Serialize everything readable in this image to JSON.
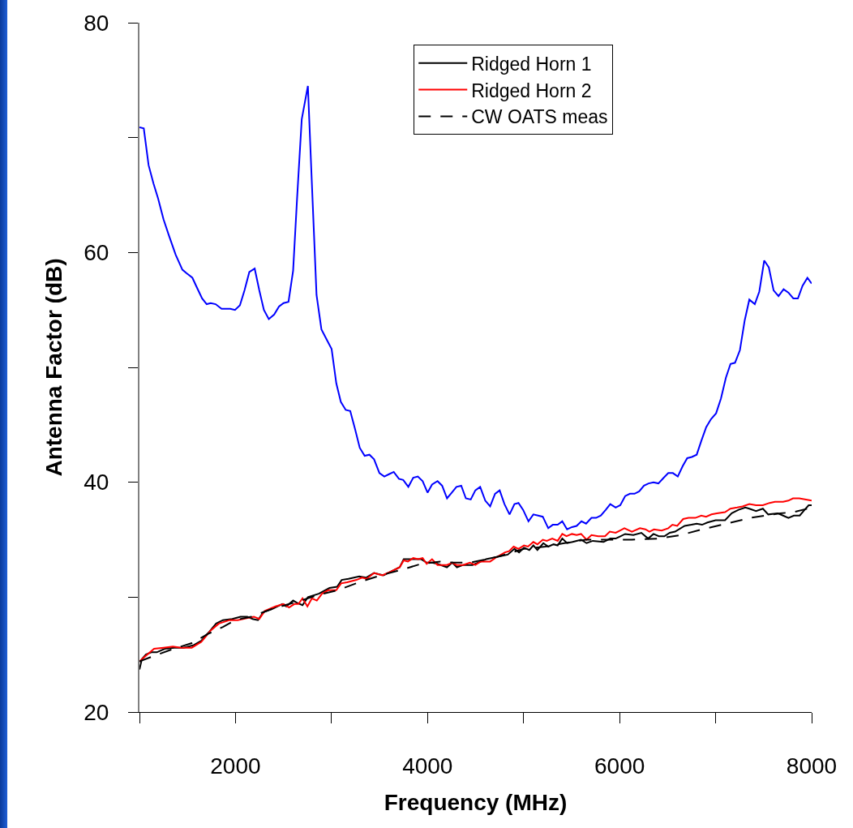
{
  "chart_data": {
    "type": "line",
    "xlabel": "Frequency (MHz)",
    "ylabel": "Antenna Factor (dB)",
    "xlim": [
      1000,
      8000
    ],
    "xticks": [
      {
        "value": 1000,
        "label": null
      },
      2000,
      {
        "value": 3000,
        "label": null
      },
      4000,
      {
        "value": 5000,
        "label": null
      },
      6000,
      {
        "value": 7000,
        "label": null
      },
      8000
    ],
    "ylim": [
      20,
      80
    ],
    "yticks": [
      20,
      {
        "value": 30,
        "label": null
      },
      40,
      {
        "value": 50,
        "label": null
      },
      60,
      {
        "value": 70,
        "label": null
      },
      80
    ],
    "grid": false,
    "legend": "top right",
    "series": [
      {
        "name": "Ridged Horn 1",
        "color": "#000000",
        "line_style": "solid",
        "x": [
          1000,
          1025,
          1067,
          1124,
          1180,
          1264,
          1363,
          1461,
          1559,
          1644,
          1728,
          1799,
          1869,
          1967,
          2052,
          2122,
          2178,
          2234,
          2290,
          2389,
          2487,
          2529,
          2600,
          2642,
          2698,
          2754,
          2867,
          2979,
          3058,
          3106,
          3176,
          3289,
          3359,
          3443,
          3541,
          3710,
          3752,
          3851,
          3935,
          3991,
          4047,
          4104,
          4202,
          4258,
          4306,
          4371,
          4469,
          4610,
          4722,
          4835,
          4905,
          4953,
          5004,
          5060,
          5102,
          5144,
          5206,
          5257,
          5313,
          5355,
          5403,
          5453,
          5510,
          5552,
          5599,
          5656,
          5721,
          5833,
          5903,
          5959,
          6058,
          6143,
          6227,
          6297,
          6353,
          6409,
          6466,
          6522,
          6578,
          6677,
          6747,
          6803,
          6859,
          6915,
          7000,
          7098,
          7168,
          7239,
          7309,
          7351,
          7421,
          7492,
          7548,
          7646,
          7702,
          7758,
          7815,
          7876,
          7927,
          7969,
          8000
        ],
        "values": [
          23.7,
          24.6,
          25.0,
          25.2,
          25.2,
          25.5,
          25.6,
          25.6,
          25.8,
          26.2,
          27.0,
          27.7,
          28.0,
          28.1,
          28.3,
          28.3,
          28.1,
          28.0,
          28.7,
          29.0,
          29.4,
          29.2,
          29.7,
          29.5,
          29.3,
          30.0,
          30.3,
          30.8,
          30.9,
          31.5,
          31.6,
          31.8,
          31.7,
          32.1,
          31.9,
          32.6,
          33.3,
          33.3,
          33.3,
          33.0,
          33.0,
          32.9,
          32.6,
          33.0,
          32.6,
          32.8,
          32.8,
          33.3,
          33.5,
          33.7,
          34.2,
          33.9,
          34.3,
          34.1,
          34.5,
          34.1,
          34.7,
          34.4,
          34.6,
          34.5,
          35.1,
          34.7,
          34.8,
          34.9,
          35.0,
          34.7,
          34.9,
          34.8,
          35.1,
          35.1,
          35.5,
          35.4,
          35.6,
          35.1,
          35.5,
          35.3,
          35.3,
          35.6,
          35.7,
          36.2,
          36.3,
          36.4,
          36.3,
          36.5,
          36.7,
          36.7,
          37.3,
          37.6,
          37.8,
          37.7,
          37.5,
          37.7,
          37.2,
          37.3,
          37.1,
          36.9,
          37.1,
          37.1,
          37.6,
          38.0,
          38.0
        ]
      },
      {
        "name": "Ridged Horn 2",
        "color": "#ff0000",
        "line_style": "solid",
        "x": [
          1000,
          1053,
          1152,
          1250,
          1348,
          1433,
          1545,
          1644,
          1742,
          1827,
          1939,
          2023,
          2136,
          2192,
          2248,
          2305,
          2417,
          2501,
          2558,
          2613,
          2656,
          2698,
          2749,
          2796,
          2847,
          2901,
          2965,
          3049,
          3100,
          3162,
          3260,
          3317,
          3367,
          3443,
          3528,
          3612,
          3710,
          3752,
          3795,
          3851,
          3901,
          3949,
          3991,
          4047,
          4104,
          4202,
          4258,
          4301,
          4371,
          4441,
          4498,
          4553,
          4652,
          4722,
          4806,
          4849,
          4897,
          4947,
          5004,
          5046,
          5102,
          5144,
          5200,
          5242,
          5299,
          5355,
          5403,
          5447,
          5504,
          5552,
          5599,
          5656,
          5707,
          5777,
          5848,
          5898,
          5959,
          6050,
          6128,
          6212,
          6269,
          6311,
          6358,
          6438,
          6507,
          6550,
          6600,
          6662,
          6718,
          6789,
          6851,
          6901,
          6957,
          7013,
          7098,
          7154,
          7224,
          7280,
          7351,
          7421,
          7492,
          7562,
          7618,
          7702,
          7758,
          7806,
          7871,
          7941,
          8000
        ],
        "values": [
          24.4,
          24.8,
          25.5,
          25.6,
          25.7,
          25.6,
          25.6,
          26.1,
          27.1,
          27.7,
          28.0,
          28.0,
          28.2,
          28.3,
          28.1,
          28.8,
          29.2,
          29.4,
          29.1,
          29.4,
          29.4,
          29.9,
          29.2,
          29.9,
          29.7,
          30.3,
          30.6,
          30.6,
          31.2,
          31.3,
          31.5,
          31.7,
          31.6,
          32.1,
          31.9,
          32.2,
          32.6,
          33.2,
          33.1,
          33.4,
          33.3,
          33.4,
          32.9,
          33.3,
          32.8,
          32.8,
          33.0,
          32.8,
          32.8,
          33.0,
          32.8,
          33.1,
          33.1,
          33.5,
          33.9,
          34.0,
          34.4,
          34.2,
          34.5,
          34.4,
          34.8,
          34.6,
          35.0,
          34.9,
          35.1,
          34.9,
          35.5,
          35.3,
          35.5,
          35.4,
          35.5,
          35.0,
          35.4,
          35.3,
          35.3,
          35.7,
          35.6,
          36.0,
          35.7,
          36.0,
          35.9,
          35.7,
          35.9,
          35.8,
          36.0,
          36.3,
          36.2,
          36.8,
          36.9,
          36.9,
          37.1,
          37.0,
          37.2,
          37.3,
          37.4,
          37.7,
          37.8,
          37.9,
          38.1,
          38.0,
          38.0,
          38.2,
          38.3,
          38.3,
          38.4,
          38.6,
          38.6,
          38.5,
          38.4
        ]
      },
      {
        "color": "#0000ff",
        "line_style": "solid",
        "x": [
          1000,
          1045,
          1095,
          1146,
          1194,
          1250,
          1306,
          1377,
          1447,
          1489,
          1551,
          1601,
          1652,
          1700,
          1742,
          1793,
          1855,
          1945,
          1995,
          2046,
          2094,
          2144,
          2200,
          2248,
          2296,
          2347,
          2403,
          2453,
          2501,
          2552,
          2600,
          2642,
          2690,
          2754,
          2791,
          2844,
          2895,
          2951,
          3001,
          3050,
          3097,
          3148,
          3195,
          3246,
          3294,
          3345,
          3395,
          3443,
          3499,
          3550,
          3598,
          3648,
          3702,
          3747,
          3800,
          3851,
          3899,
          3949,
          4000,
          4047,
          4104,
          4152,
          4203,
          4253,
          4301,
          4351,
          4399,
          4450,
          4498,
          4548,
          4601,
          4652,
          4703,
          4751,
          4801,
          4854,
          4905,
          4947,
          4995,
          5051,
          5102,
          5152,
          5200,
          5257,
          5304,
          5355,
          5403,
          5453,
          5504,
          5552,
          5603,
          5651,
          5707,
          5755,
          5805,
          5856,
          5903,
          5959,
          6007,
          6058,
          6108,
          6156,
          6204,
          6254,
          6302,
          6353,
          6404,
          6460,
          6507,
          6555,
          6606,
          6657,
          6704,
          6752,
          6803,
          6851,
          6902,
          6952,
          7005,
          7056,
          7107,
          7155,
          7202,
          7253,
          7303,
          7351,
          7408,
          7455,
          7506,
          7554,
          7604,
          7655,
          7708,
          7759,
          7809,
          7857,
          7905,
          7956,
          8000
        ],
        "values": [
          70.9,
          70.8,
          67.6,
          66.0,
          64.7,
          62.9,
          61.5,
          59.8,
          58.5,
          58.2,
          57.8,
          56.9,
          56.0,
          55.5,
          55.6,
          55.5,
          55.1,
          55.1,
          55.0,
          55.4,
          56.7,
          58.3,
          58.6,
          56.7,
          55.0,
          54.2,
          54.6,
          55.3,
          55.6,
          55.7,
          58.4,
          64.8,
          71.6,
          74.5,
          66.9,
          56.3,
          53.3,
          52.4,
          51.6,
          48.6,
          47.0,
          46.3,
          46.2,
          44.6,
          43.0,
          42.3,
          42.4,
          42.0,
          40.8,
          40.5,
          40.7,
          40.9,
          40.3,
          40.2,
          39.6,
          40.4,
          40.5,
          40.1,
          39.1,
          39.8,
          40.1,
          39.7,
          38.6,
          39.1,
          39.6,
          39.7,
          38.6,
          38.5,
          39.3,
          39.6,
          38.4,
          37.9,
          39.0,
          39.3,
          38.1,
          37.2,
          38.1,
          38.2,
          37.6,
          36.6,
          37.2,
          37.1,
          37.0,
          36.0,
          36.3,
          36.3,
          36.6,
          35.9,
          36.1,
          36.2,
          36.6,
          36.4,
          36.9,
          36.9,
          37.1,
          37.6,
          38.1,
          37.8,
          38.0,
          38.8,
          39.0,
          39.0,
          39.2,
          39.7,
          39.9,
          40.0,
          39.9,
          40.4,
          40.8,
          40.8,
          40.5,
          41.4,
          42.1,
          42.2,
          42.4,
          43.6,
          44.8,
          45.5,
          46.0,
          47.3,
          49.1,
          50.3,
          50.4,
          51.5,
          54.1,
          55.9,
          55.5,
          56.6,
          59.3,
          58.7,
          56.7,
          56.2,
          56.8,
          56.5,
          56.0,
          56.0,
          57.1,
          57.8,
          57.3
        ]
      },
      {
        "name": "CW OATS meas",
        "color": "#000000",
        "line_style": "dashed",
        "x": [
          1000,
          1124,
          1320,
          1545,
          1714,
          1869,
          1995,
          2164,
          2389,
          2642,
          2867,
          3064,
          3289,
          3513,
          3738,
          3935,
          4132,
          4273,
          4441,
          4722,
          5004,
          5228,
          5425,
          5650,
          5903,
          6128,
          6409,
          6634,
          6859,
          7112,
          7365,
          7674,
          7815,
          7956,
          8000
        ],
        "values": [
          24.4,
          24.8,
          25.4,
          26.0,
          26.8,
          27.4,
          28.0,
          28.3,
          29.0,
          29.6,
          30.2,
          30.6,
          31.3,
          31.9,
          32.4,
          32.9,
          33.1,
          33.0,
          33.0,
          33.5,
          34.2,
          34.4,
          34.7,
          35.0,
          35.0,
          35.0,
          35.1,
          35.4,
          35.9,
          36.4,
          36.9,
          37.3,
          37.4,
          37.7,
          38.0
        ]
      }
    ]
  }
}
